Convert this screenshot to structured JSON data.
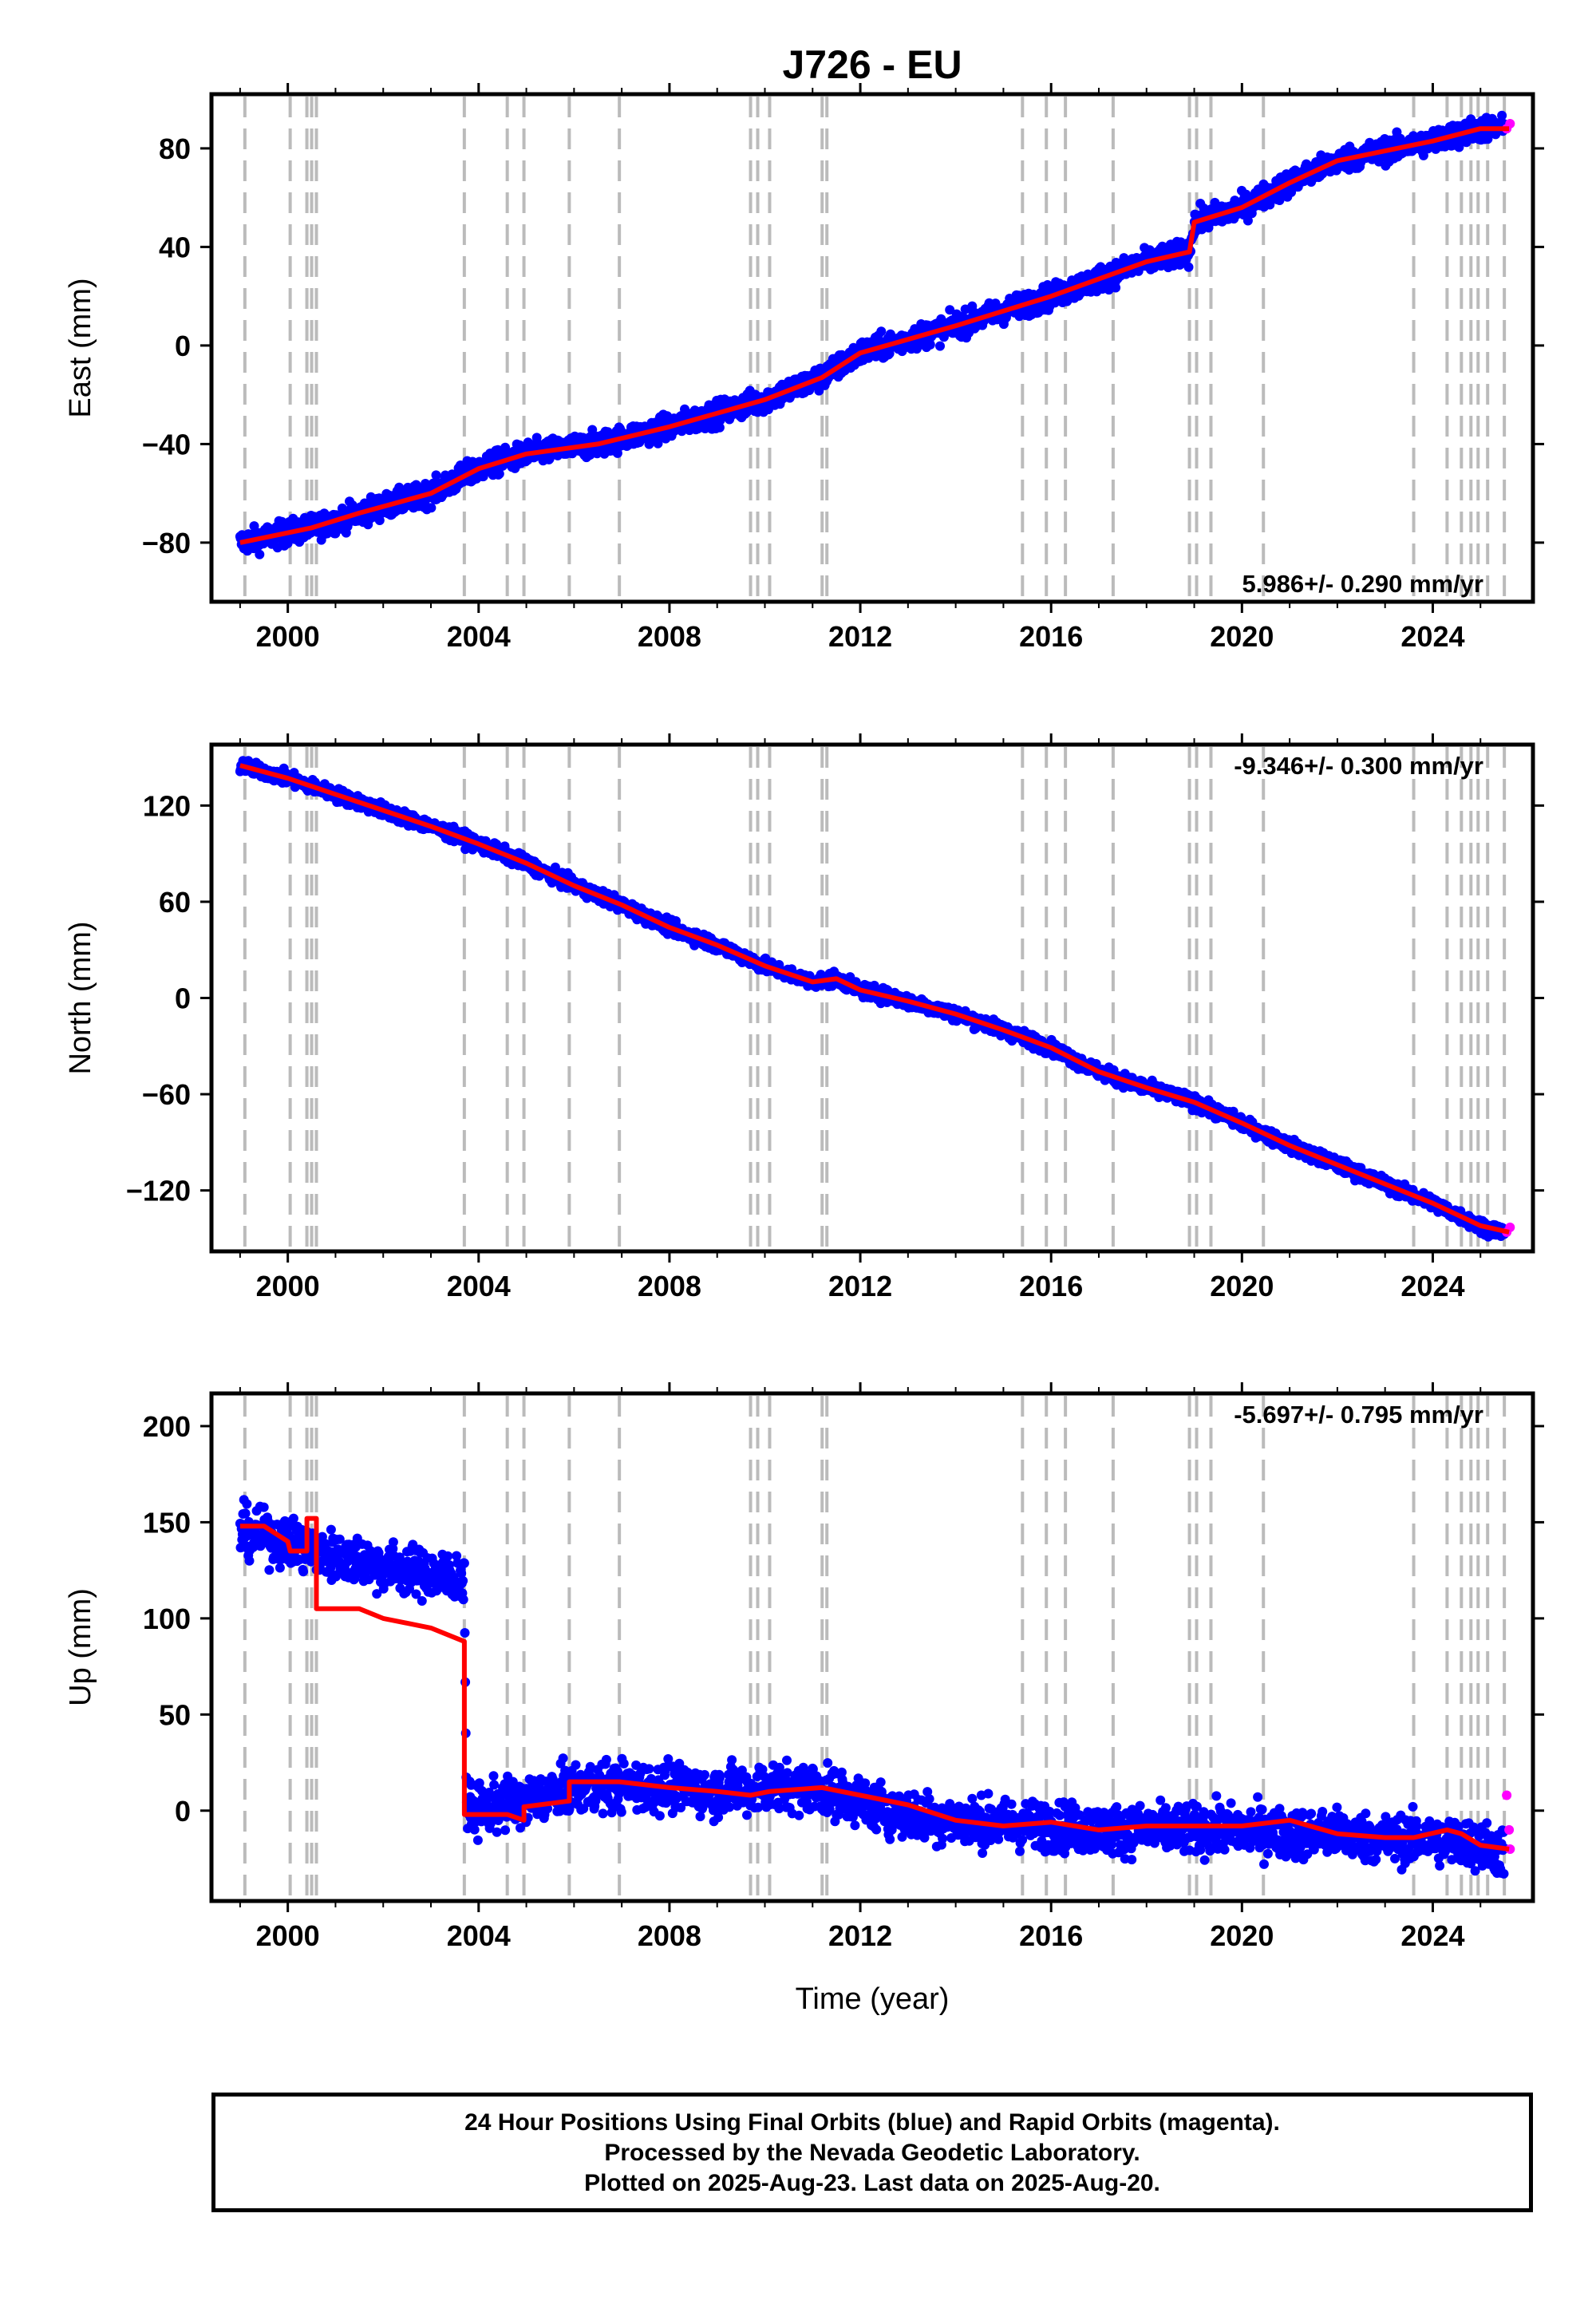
{
  "title": "J726 - EU",
  "x_axis": {
    "label": "Time (year)",
    "ticks": [
      2000,
      2004,
      2008,
      2012,
      2016,
      2020,
      2024
    ]
  },
  "event_lines": [
    1999.1,
    2000.05,
    2000.4,
    2000.5,
    2000.6,
    2003.7,
    2004.6,
    2004.95,
    2005.9,
    2006.95,
    2009.7,
    2009.85,
    2010.1,
    2011.2,
    2011.3,
    2015.4,
    2015.9,
    2016.3,
    2017.3,
    2018.9,
    2019.05,
    2019.35,
    2020.45,
    2023.6,
    2024.3,
    2024.6,
    2024.8,
    2024.95,
    2025.15,
    2025.5
  ],
  "colors": {
    "final": "#0000ff",
    "rapid": "#ff00ff",
    "model": "#ff0000",
    "event": "#bbbbbb"
  },
  "footer": {
    "line1": "24 Hour Positions Using Final Orbits (blue) and Rapid Orbits (magenta).",
    "line2": "Processed by the Nevada Geodetic Laboratory.",
    "line3": "Plotted on 2025-Aug-23. Last data on 2025-Aug-20."
  },
  "chart_data": [
    {
      "type": "scatter",
      "component": "East",
      "ylabel": "East (mm)",
      "xlim": [
        1998.4,
        2026.1
      ],
      "ylim": [
        -104,
        102
      ],
      "yticks": [
        -80,
        -40,
        0,
        40,
        80
      ],
      "rate": "5.986+/- 0.290 mm/yr",
      "rate_position": "bottom-right",
      "noise": 3.5,
      "series": [
        {
          "label": "Final Orbits (blue)",
          "points": [
            [
              1999.0,
              -80
            ],
            [
              2000.5,
              -74
            ],
            [
              2001.5,
              -68
            ],
            [
              2003.0,
              -60
            ],
            [
              2004.0,
              -50
            ],
            [
              2005.0,
              -44
            ],
            [
              2006.5,
              -40
            ],
            [
              2008.0,
              -33
            ],
            [
              2010.0,
              -22
            ],
            [
              2011.2,
              -13
            ],
            [
              2012.0,
              -3
            ],
            [
              2014.0,
              8
            ],
            [
              2016.0,
              20
            ],
            [
              2018.0,
              34
            ],
            [
              2018.9,
              38
            ],
            [
              2019.0,
              50
            ],
            [
              2020.0,
              56
            ],
            [
              2021.0,
              66
            ],
            [
              2022.0,
              75
            ],
            [
              2024.0,
              83
            ],
            [
              2025.0,
              88
            ],
            [
              2025.5,
              88
            ]
          ]
        },
        {
          "label": "Rapid Orbits (magenta)",
          "points": [
            [
              2025.55,
              88
            ],
            [
              2025.62,
              90
            ]
          ]
        },
        {
          "label": "Model",
          "points": [
            [
              1999.0,
              -80
            ],
            [
              2000.5,
              -74
            ],
            [
              2001.5,
              -68
            ],
            [
              2003.0,
              -60
            ],
            [
              2004.0,
              -50
            ],
            [
              2005.0,
              -44
            ],
            [
              2006.5,
              -40
            ],
            [
              2008.0,
              -33
            ],
            [
              2010.0,
              -22
            ],
            [
              2011.2,
              -13
            ],
            [
              2012.0,
              -3
            ],
            [
              2014.0,
              8
            ],
            [
              2016.0,
              20
            ],
            [
              2018.0,
              34
            ],
            [
              2018.9,
              38
            ],
            [
              2019.0,
              50
            ],
            [
              2020.0,
              56
            ],
            [
              2021.0,
              66
            ],
            [
              2022.0,
              75
            ],
            [
              2024.0,
              83
            ],
            [
              2025.0,
              88
            ],
            [
              2025.6,
              88
            ]
          ]
        }
      ]
    },
    {
      "type": "scatter",
      "component": "North",
      "ylabel": "North (mm)",
      "xlim": [
        1998.4,
        2026.1
      ],
      "ylim": [
        -158,
        158
      ],
      "yticks": [
        -120,
        -60,
        0,
        60,
        120
      ],
      "rate": "-9.346+/- 0.300 mm/yr",
      "rate_position": "top-right",
      "noise": 3,
      "series": [
        {
          "label": "Final Orbits (blue)",
          "points": [
            [
              1999.0,
              145
            ],
            [
              2000.0,
              137
            ],
            [
              2001.0,
              127
            ],
            [
              2002.0,
              117
            ],
            [
              2003.0,
              107
            ],
            [
              2004.0,
              96
            ],
            [
              2005.0,
              84
            ],
            [
              2006.0,
              70
            ],
            [
              2007.0,
              58
            ],
            [
              2008.0,
              44
            ],
            [
              2009.0,
              33
            ],
            [
              2010.0,
              20
            ],
            [
              2011.0,
              10
            ],
            [
              2011.5,
              12
            ],
            [
              2012.0,
              5
            ],
            [
              2013.0,
              -2
            ],
            [
              2014.0,
              -10
            ],
            [
              2015.0,
              -20
            ],
            [
              2016.0,
              -31
            ],
            [
              2017.0,
              -46
            ],
            [
              2018.0,
              -56
            ],
            [
              2019.0,
              -65
            ],
            [
              2020.0,
              -78
            ],
            [
              2021.0,
              -92
            ],
            [
              2022.0,
              -104
            ],
            [
              2023.0,
              -116
            ],
            [
              2024.0,
              -128
            ],
            [
              2025.0,
              -142
            ],
            [
              2025.5,
              -146
            ]
          ]
        },
        {
          "label": "Rapid Orbits (magenta)",
          "points": [
            [
              2025.55,
              -146
            ],
            [
              2025.62,
              -143
            ]
          ]
        },
        {
          "label": "Model",
          "points": [
            [
              1999.0,
              145
            ],
            [
              2000.0,
              137
            ],
            [
              2001.0,
              127
            ],
            [
              2002.0,
              117
            ],
            [
              2003.0,
              107
            ],
            [
              2004.0,
              96
            ],
            [
              2005.0,
              84
            ],
            [
              2006.0,
              70
            ],
            [
              2007.0,
              58
            ],
            [
              2008.0,
              44
            ],
            [
              2009.0,
              33
            ],
            [
              2010.0,
              20
            ],
            [
              2011.0,
              10
            ],
            [
              2011.5,
              12
            ],
            [
              2012.0,
              5
            ],
            [
              2013.0,
              -2
            ],
            [
              2014.0,
              -10
            ],
            [
              2015.0,
              -20
            ],
            [
              2016.0,
              -31
            ],
            [
              2017.0,
              -46
            ],
            [
              2018.0,
              -56
            ],
            [
              2019.0,
              -65
            ],
            [
              2020.0,
              -78
            ],
            [
              2021.0,
              -92
            ],
            [
              2022.0,
              -104
            ],
            [
              2023.0,
              -116
            ],
            [
              2024.0,
              -128
            ],
            [
              2025.0,
              -142
            ],
            [
              2025.6,
              -146
            ]
          ]
        }
      ]
    },
    {
      "type": "scatter",
      "component": "Up",
      "ylabel": "Up (mm)",
      "xlim": [
        1998.4,
        2026.1
      ],
      "ylim": [
        -47,
        217
      ],
      "yticks": [
        0,
        50,
        100,
        150,
        200
      ],
      "rate": "-5.697+/- 0.795 mm/yr",
      "rate_position": "top-right",
      "noise": 9,
      "series": [
        {
          "label": "Final Orbits (blue)",
          "points": [
            [
              1999.0,
              145
            ],
            [
              2000.0,
              140
            ],
            [
              2000.5,
              135
            ],
            [
              2001.5,
              130
            ],
            [
              2002.5,
              125
            ],
            [
              2003.7,
              120
            ],
            [
              2003.75,
              0
            ],
            [
              2005.0,
              5
            ],
            [
              2006.0,
              12
            ],
            [
              2007.0,
              13
            ],
            [
              2008.0,
              12
            ],
            [
              2009.0,
              10
            ],
            [
              2010.0,
              12
            ],
            [
              2011.0,
              12
            ],
            [
              2012.0,
              5
            ],
            [
              2013.0,
              -2
            ],
            [
              2014.0,
              -5
            ],
            [
              2015.0,
              -7
            ],
            [
              2016.0,
              -8
            ],
            [
              2017.0,
              -10
            ],
            [
              2018.0,
              -10
            ],
            [
              2019.0,
              -10
            ],
            [
              2020.0,
              -10
            ],
            [
              2021.0,
              -12
            ],
            [
              2022.0,
              -12
            ],
            [
              2023.0,
              -15
            ],
            [
              2024.0,
              -15
            ],
            [
              2025.0,
              -18
            ],
            [
              2025.5,
              -22
            ]
          ]
        },
        {
          "label": "Rapid Orbits (magenta)",
          "points": [
            [
              2025.55,
              8
            ],
            [
              2025.6,
              -10
            ],
            [
              2025.62,
              -20
            ]
          ]
        },
        {
          "label": "Model",
          "points": [
            [
              1999.0,
              148
            ],
            [
              1999.5,
              148
            ],
            [
              2000.0,
              140
            ],
            [
              2000.05,
              135
            ],
            [
              2000.4,
              135
            ],
            [
              2000.4,
              152
            ],
            [
              2000.6,
              152
            ],
            [
              2000.6,
              105
            ],
            [
              2001.5,
              105
            ],
            [
              2002.0,
              100
            ],
            [
              2003.0,
              95
            ],
            [
              2003.7,
              88
            ],
            [
              2003.7,
              -2
            ],
            [
              2004.6,
              -2
            ],
            [
              2004.95,
              -5
            ],
            [
              2004.95,
              2
            ],
            [
              2005.9,
              5
            ],
            [
              2005.9,
              15
            ],
            [
              2006.95,
              15
            ],
            [
              2008.0,
              12
            ],
            [
              2009.0,
              10
            ],
            [
              2009.7,
              8
            ],
            [
              2010.1,
              10
            ],
            [
              2011.2,
              12
            ],
            [
              2012.0,
              8
            ],
            [
              2013.0,
              3
            ],
            [
              2014.0,
              -5
            ],
            [
              2015.0,
              -8
            ],
            [
              2016.0,
              -6
            ],
            [
              2017.0,
              -10
            ],
            [
              2018.0,
              -8
            ],
            [
              2019.0,
              -8
            ],
            [
              2020.0,
              -8
            ],
            [
              2021.0,
              -5
            ],
            [
              2022.0,
              -12
            ],
            [
              2023.0,
              -14
            ],
            [
              2023.6,
              -14
            ],
            [
              2024.3,
              -10
            ],
            [
              2024.6,
              -12
            ],
            [
              2025.0,
              -18
            ],
            [
              2025.6,
              -20
            ]
          ]
        }
      ]
    }
  ]
}
